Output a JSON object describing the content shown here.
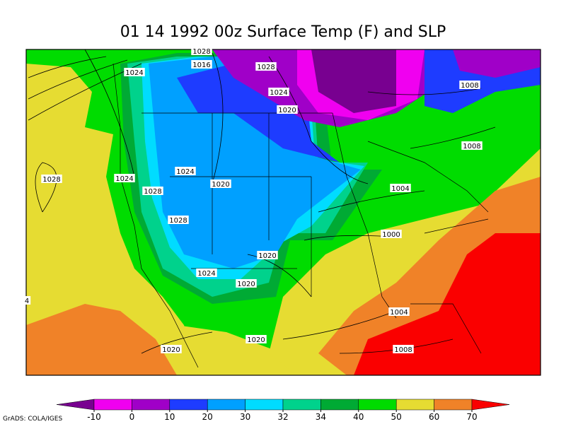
{
  "title": "01 14 1992 00z Surface Temp (F) and SLP",
  "isobar_labels": [
    "1028",
    "1016",
    "1024",
    "1028",
    "1024",
    "1020",
    "1008",
    "1008",
    "1028",
    "1024",
    "1024",
    "1028",
    "1020",
    "1004",
    "1028",
    "1000",
    "1020",
    "1024",
    "1020",
    "1004",
    "1020",
    "1008",
    "1020",
    "4"
  ],
  "colorbar": {
    "ticks": [
      -10,
      0,
      10,
      20,
      30,
      32,
      34,
      40,
      50,
      60,
      70
    ],
    "colors": [
      "#780090",
      "#f000f0",
      "#a000c8",
      "#1e3cff",
      "#00a0ff",
      "#00dcff",
      "#00d28c",
      "#00aa34",
      "#00dc00",
      "#e6dc32",
      "#f08228",
      "#fa0000"
    ]
  },
  "credit": "GrADS: COLA/IGES"
}
